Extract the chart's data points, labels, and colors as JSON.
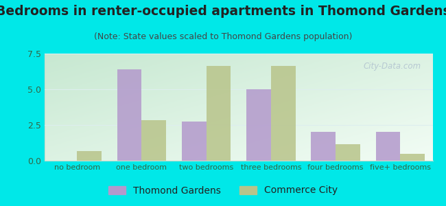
{
  "title": "Bedrooms in renter-occupied apartments in Thomond Gardens",
  "subtitle": "(Note: State values scaled to Thomond Gardens population)",
  "categories": [
    "no bedroom",
    "one bedroom",
    "two bedrooms",
    "three bedrooms",
    "four bedrooms",
    "five+ bedrooms"
  ],
  "thomond_values": [
    0,
    6.4,
    2.75,
    5.0,
    2.0,
    2.0
  ],
  "commerce_values": [
    0.65,
    2.85,
    6.65,
    6.65,
    1.15,
    0.5
  ],
  "thomond_color": "#b399cc",
  "commerce_color": "#b8c48a",
  "ylim": [
    0,
    7.5
  ],
  "yticks": [
    0,
    2.5,
    5,
    7.5
  ],
  "outer_bg": "#00e8e8",
  "plot_bg_topleft": "#c8e8d0",
  "plot_bg_bottomright": "#f0f8f0",
  "bar_width": 0.38,
  "title_fontsize": 13.5,
  "subtitle_fontsize": 9,
  "tick_fontsize": 8,
  "ytick_fontsize": 9,
  "legend_fontsize": 10,
  "watermark": "City-Data.com",
  "watermark_color": "#aabbcc",
  "grid_color": "#ddeeee",
  "tick_color": "#336644",
  "title_color": "#222222",
  "subtitle_color": "#444444"
}
